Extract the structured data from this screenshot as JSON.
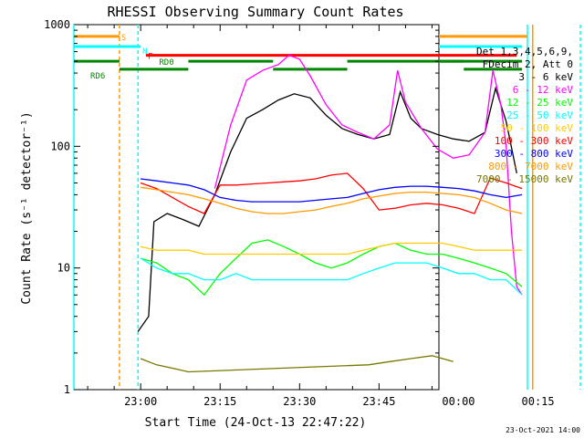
{
  "chart_data": {
    "type": "line",
    "title": "RHESSI Observing Summary Count Rates",
    "xlabel": "Start Time (24-Oct-13 22:47:22)",
    "ylabel": "Count Rate (s⁻¹ detector⁻¹)",
    "yscale": "log",
    "ylim": [
      1,
      1000
    ],
    "xlim_minutes": [
      22.4,
      91.3
    ],
    "x_ticks": [
      {
        "label": "23:00",
        "m": 35
      },
      {
        "label": "23:15",
        "m": 50
      },
      {
        "label": "23:30",
        "m": 65
      },
      {
        "label": "23:45",
        "m": 80
      },
      {
        "label": "00:00",
        "m": 95
      },
      {
        "label": "00:15",
        "m": 110
      }
    ],
    "y_ticks": [
      {
        "label": "1",
        "v": 1
      },
      {
        "label": "10",
        "v": 10
      },
      {
        "label": "100",
        "v": 100
      },
      {
        "label": "1000",
        "v": 1000
      }
    ],
    "legend_header": [
      "Det 1,3,4,5,6,9,",
      "FDecim 2, Att 0"
    ],
    "series": [
      {
        "name": "3 - 6 keV",
        "color": "#000000",
        "points": [
          [
            34.5,
            3
          ],
          [
            36.5,
            4
          ],
          [
            37.5,
            24
          ],
          [
            40,
            28
          ],
          [
            43,
            25
          ],
          [
            46,
            22
          ],
          [
            49,
            40
          ],
          [
            52,
            90
          ],
          [
            55,
            170
          ],
          [
            58,
            200
          ],
          [
            61,
            240
          ],
          [
            64,
            270
          ],
          [
            67,
            250
          ],
          [
            70,
            180
          ],
          [
            73,
            140
          ],
          [
            76,
            125
          ],
          [
            79,
            115
          ],
          [
            82,
            125
          ],
          [
            84,
            280
          ],
          [
            86,
            170
          ],
          [
            88,
            140
          ],
          [
            91,
            125
          ],
          [
            94,
            115
          ],
          [
            97,
            110
          ],
          [
            100,
            130
          ],
          [
            102,
            300
          ],
          [
            104,
            160
          ],
          [
            106,
            60
          ]
        ]
      },
      {
        "name": "6 - 12 keV",
        "color": "#ff00ff",
        "points": [
          [
            49,
            45
          ],
          [
            52,
            150
          ],
          [
            55,
            350
          ],
          [
            58,
            420
          ],
          [
            61,
            470
          ],
          [
            63,
            560
          ],
          [
            65,
            520
          ],
          [
            67,
            380
          ],
          [
            70,
            220
          ],
          [
            73,
            150
          ],
          [
            76,
            130
          ],
          [
            79,
            115
          ],
          [
            82,
            150
          ],
          [
            83.5,
            420
          ],
          [
            85,
            230
          ],
          [
            88,
            140
          ],
          [
            91,
            95
          ],
          [
            94,
            80
          ],
          [
            97,
            85
          ],
          [
            100,
            130
          ],
          [
            101.5,
            420
          ],
          [
            103,
            220
          ],
          [
            104,
            100
          ],
          [
            105,
            20
          ],
          [
            106,
            7
          ],
          [
            107,
            6
          ]
        ]
      },
      {
        "name": "12 - 25 keV",
        "color": "#00ff00",
        "points": [
          [
            35,
            12
          ],
          [
            38,
            11
          ],
          [
            41,
            9
          ],
          [
            44,
            8
          ],
          [
            47,
            6
          ],
          [
            50,
            9
          ],
          [
            53,
            12
          ],
          [
            56,
            16
          ],
          [
            59,
            17
          ],
          [
            62,
            15
          ],
          [
            65,
            13
          ],
          [
            68,
            11
          ],
          [
            71,
            10
          ],
          [
            74,
            11
          ],
          [
            77,
            13
          ],
          [
            80,
            15
          ],
          [
            83,
            16
          ],
          [
            86,
            14
          ],
          [
            89,
            13
          ],
          [
            92,
            13
          ],
          [
            95,
            12
          ],
          [
            98,
            11
          ],
          [
            101,
            10
          ],
          [
            104,
            9
          ],
          [
            107,
            7
          ]
        ]
      },
      {
        "name": "25 - 50 keV",
        "color": "#00ffff",
        "points": [
          [
            35,
            12
          ],
          [
            38,
            10
          ],
          [
            41,
            9
          ],
          [
            44,
            9
          ],
          [
            47,
            8
          ],
          [
            50,
            8
          ],
          [
            53,
            9
          ],
          [
            56,
            8
          ],
          [
            59,
            8
          ],
          [
            62,
            8
          ],
          [
            65,
            8
          ],
          [
            68,
            8
          ],
          [
            71,
            8
          ],
          [
            74,
            8
          ],
          [
            77,
            9
          ],
          [
            80,
            10
          ],
          [
            83,
            11
          ],
          [
            86,
            11
          ],
          [
            89,
            11
          ],
          [
            92,
            10
          ],
          [
            95,
            9
          ],
          [
            98,
            9
          ],
          [
            101,
            8
          ],
          [
            104,
            8
          ],
          [
            107,
            6
          ]
        ]
      },
      {
        "name": "50 - 100 keV",
        "color": "#ffcc00",
        "points": [
          [
            35,
            15
          ],
          [
            38,
            14
          ],
          [
            41,
            14
          ],
          [
            44,
            14
          ],
          [
            47,
            13
          ],
          [
            50,
            13
          ],
          [
            53,
            13
          ],
          [
            56,
            13
          ],
          [
            59,
            13
          ],
          [
            62,
            13
          ],
          [
            65,
            13
          ],
          [
            68,
            13
          ],
          [
            71,
            13
          ],
          [
            74,
            13
          ],
          [
            77,
            14
          ],
          [
            80,
            15
          ],
          [
            83,
            16
          ],
          [
            86,
            16
          ],
          [
            89,
            16
          ],
          [
            92,
            16
          ],
          [
            95,
            15
          ],
          [
            98,
            14
          ],
          [
            101,
            14
          ],
          [
            104,
            14
          ],
          [
            107,
            14
          ]
        ]
      },
      {
        "name": "100 - 300 keV",
        "color": "#ff0000",
        "points": [
          [
            35,
            50
          ],
          [
            38,
            45
          ],
          [
            41,
            38
          ],
          [
            44,
            32
          ],
          [
            47,
            28
          ],
          [
            50,
            48
          ],
          [
            53,
            48
          ],
          [
            56,
            49
          ],
          [
            59,
            50
          ],
          [
            62,
            51
          ],
          [
            65,
            52
          ],
          [
            68,
            54
          ],
          [
            71,
            58
          ],
          [
            74,
            60
          ],
          [
            77,
            45
          ],
          [
            80,
            30
          ],
          [
            83,
            31
          ],
          [
            86,
            33
          ],
          [
            89,
            34
          ],
          [
            92,
            33
          ],
          [
            95,
            31
          ],
          [
            98,
            28
          ],
          [
            101,
            55
          ],
          [
            104,
            50
          ],
          [
            107,
            45
          ]
        ]
      },
      {
        "name": "300 - 800 keV",
        "color": "#0000ff",
        "points": [
          [
            35,
            54
          ],
          [
            38,
            52
          ],
          [
            41,
            50
          ],
          [
            44,
            48
          ],
          [
            47,
            44
          ],
          [
            50,
            38
          ],
          [
            53,
            36
          ],
          [
            56,
            35
          ],
          [
            59,
            35
          ],
          [
            62,
            35
          ],
          [
            65,
            35
          ],
          [
            68,
            36
          ],
          [
            71,
            37
          ],
          [
            74,
            38
          ],
          [
            77,
            41
          ],
          [
            80,
            44
          ],
          [
            83,
            46
          ],
          [
            86,
            47
          ],
          [
            89,
            47
          ],
          [
            92,
            46
          ],
          [
            95,
            45
          ],
          [
            98,
            43
          ],
          [
            101,
            40
          ],
          [
            104,
            38
          ],
          [
            107,
            40
          ]
        ]
      },
      {
        "name": "800 - 7000 keV",
        "color": "#ff9900",
        "points": [
          [
            35,
            46
          ],
          [
            38,
            44
          ],
          [
            41,
            42
          ],
          [
            44,
            40
          ],
          [
            47,
            37
          ],
          [
            50,
            34
          ],
          [
            53,
            31
          ],
          [
            56,
            29
          ],
          [
            59,
            28
          ],
          [
            62,
            28
          ],
          [
            65,
            29
          ],
          [
            68,
            30
          ],
          [
            71,
            32
          ],
          [
            74,
            34
          ],
          [
            77,
            37
          ],
          [
            80,
            39
          ],
          [
            83,
            41
          ],
          [
            86,
            42
          ],
          [
            89,
            42
          ],
          [
            92,
            41
          ],
          [
            95,
            40
          ],
          [
            98,
            38
          ],
          [
            101,
            34
          ],
          [
            104,
            30
          ],
          [
            107,
            28
          ]
        ]
      },
      {
        "name": "7000 - 15000 keV",
        "color": "#777700",
        "points": [
          [
            35,
            1.8
          ],
          [
            38,
            1.6
          ],
          [
            41,
            1.5
          ],
          [
            44,
            1.4
          ],
          [
            78,
            1.6
          ],
          [
            82,
            1.7
          ],
          [
            86,
            1.8
          ],
          [
            90,
            1.9
          ],
          [
            94,
            1.7
          ]
        ]
      }
    ],
    "flags": [
      {
        "name": "S",
        "color": "#ff9900",
        "v": 800,
        "segments": [
          [
            22.4,
            31
          ],
          [
            108,
            91.3
          ]
        ]
      },
      {
        "name": "N",
        "color": "#00ffff",
        "v": 660,
        "segments": [
          [
            22.4,
            35
          ],
          [
            107,
            91.3
          ]
        ]
      },
      {
        "name": "F",
        "color": "#ff0000",
        "v": 560,
        "segments": [
          [
            36,
            106
          ]
        ]
      },
      {
        "name": "RD0",
        "color": "#008800",
        "v": 500,
        "segments": [
          [
            22.4,
            31
          ],
          [
            44,
            60
          ],
          [
            74,
            96
          ],
          [
            107,
            91.3
          ]
        ]
      },
      {
        "name": "RD6",
        "color": "#008800",
        "v": 430,
        "segments": [
          [
            31,
            44
          ],
          [
            60,
            74
          ],
          [
            96,
            107
          ]
        ]
      }
    ],
    "vlines": [
      {
        "color": "#00ffff",
        "m": 22.4
      },
      {
        "color": "#ff9900",
        "m": 31,
        "dash": true
      },
      {
        "color": "#00ffff",
        "m": 34.5,
        "dash": true
      },
      {
        "color": "#00ffff",
        "m": 108
      },
      {
        "color": "#ff9900",
        "m": 109
      },
      {
        "color": "#00ffff",
        "m": 118,
        "dash": true
      }
    ],
    "timestamp": "23-Oct-2021 14:00",
    "grid": false,
    "legend_position": "right"
  }
}
